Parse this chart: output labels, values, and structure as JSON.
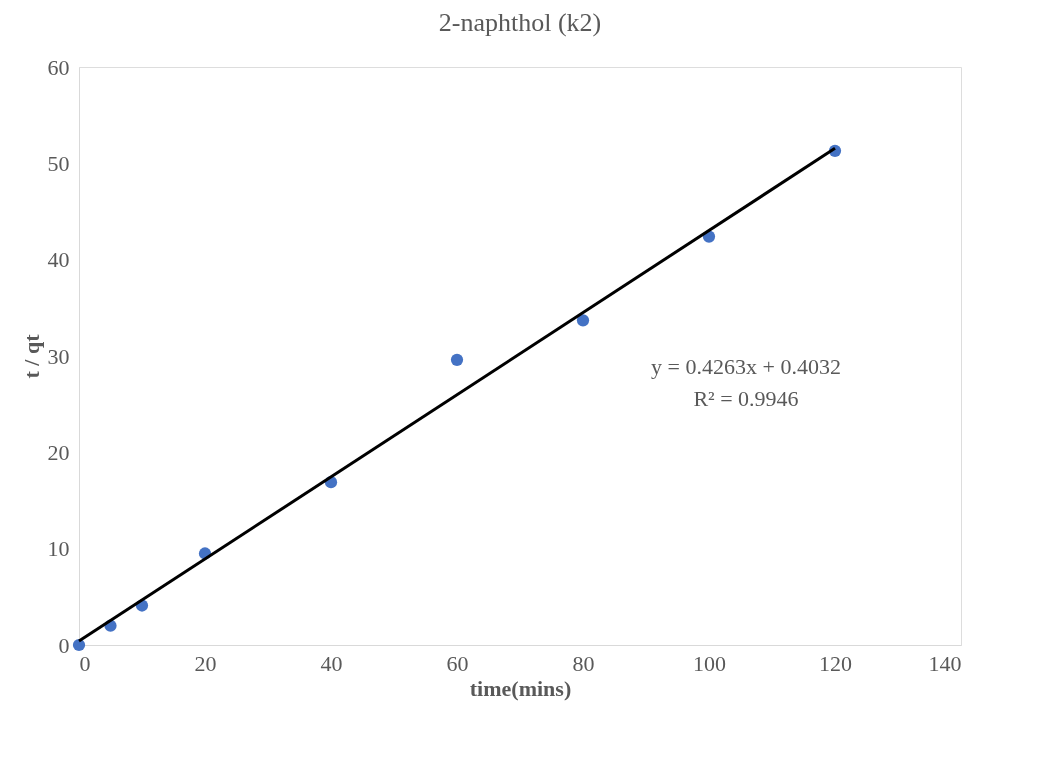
{
  "chart_data": {
    "type": "scatter",
    "title": "2-naphthol (k2)",
    "xlabel": "time(mins)",
    "ylabel": "t / qt",
    "x": [
      0,
      5,
      10,
      20,
      40,
      60,
      80,
      100,
      120
    ],
    "series": [
      {
        "color": "#4472c4",
        "values": [
          0,
          2.0,
          4.1,
          9.5,
          16.9,
          29.6,
          33.7,
          42.4,
          51.3
        ],
        "marker": "circle"
      },
      {
        "type": "line",
        "color": "#000000",
        "x": [
          0,
          120
        ],
        "values": [
          0.4032,
          51.5592
        ],
        "line_style": "solid"
      }
    ],
    "annotations": [
      "y = 0.4263x + 0.4032",
      "R² = 0.9946"
    ],
    "xlim": [
      0,
      140
    ],
    "xticks": [
      0,
      20,
      40,
      60,
      80,
      100,
      120,
      140
    ],
    "ylim": [
      0,
      60
    ],
    "yticks": [
      0,
      10,
      20,
      30,
      40,
      50,
      60
    ],
    "grid": false
  }
}
